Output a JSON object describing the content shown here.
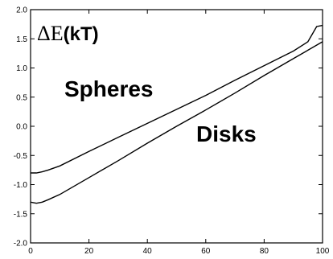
{
  "chart_data": {
    "type": "line",
    "ylabel": {
      "symbol": "ΔE",
      "unit": "(kT)"
    },
    "xlim": [
      0,
      100
    ],
    "ylim": [
      -2.0,
      2.0
    ],
    "x_ticks": [
      "0",
      "20",
      "40",
      "60",
      "80",
      "100"
    ],
    "y_ticks": [
      "2.0",
      "1.5",
      "1.0",
      "0.5",
      "0.0",
      "-0.5",
      "-1.0",
      "-1.5",
      "-2.0"
    ],
    "grid": false,
    "annotations": [
      "Spheres",
      "Disks"
    ],
    "series": [
      {
        "name": "Spheres",
        "x": [
          0,
          2,
          4,
          6,
          10,
          20,
          30,
          40,
          50,
          60,
          70,
          80,
          90,
          95,
          98,
          100
        ],
        "y": [
          -0.8,
          -0.8,
          -0.78,
          -0.75,
          -0.68,
          -0.43,
          -0.19,
          0.05,
          0.29,
          0.53,
          0.79,
          1.04,
          1.29,
          1.45,
          1.71,
          1.73
        ]
      },
      {
        "name": "Disks",
        "x": [
          0,
          2,
          4,
          6,
          10,
          20,
          30,
          40,
          50,
          60,
          70,
          80,
          90,
          100
        ],
        "y": [
          -1.3,
          -1.32,
          -1.3,
          -1.26,
          -1.17,
          -0.88,
          -0.59,
          -0.29,
          0.0,
          0.28,
          0.57,
          0.87,
          1.16,
          1.45
        ]
      }
    ]
  }
}
